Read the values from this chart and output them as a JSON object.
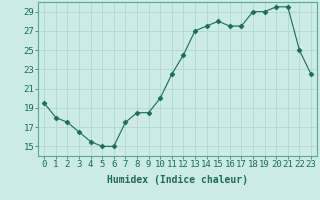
{
  "x": [
    0,
    1,
    2,
    3,
    4,
    5,
    6,
    7,
    8,
    9,
    10,
    11,
    12,
    13,
    14,
    15,
    16,
    17,
    18,
    19,
    20,
    21,
    22,
    23
  ],
  "y": [
    19.5,
    18.0,
    17.5,
    16.5,
    15.5,
    15.0,
    15.0,
    17.5,
    18.5,
    18.5,
    20.0,
    22.5,
    24.5,
    27.0,
    27.5,
    28.0,
    27.5,
    27.5,
    29.0,
    29.0,
    29.5,
    29.5,
    25.0,
    22.5
  ],
  "line_color": "#1a6b5a",
  "marker": "D",
  "marker_size": 2.5,
  "bg_color": "#cceae7",
  "grid_color": "#b0d8d5",
  "xlabel": "Humidex (Indice chaleur)",
  "xlim": [
    -0.5,
    23.5
  ],
  "ylim": [
    14,
    30
  ],
  "yticks": [
    15,
    17,
    19,
    21,
    23,
    25,
    27,
    29
  ],
  "xticks": [
    0,
    1,
    2,
    3,
    4,
    5,
    6,
    7,
    8,
    9,
    10,
    11,
    12,
    13,
    14,
    15,
    16,
    17,
    18,
    19,
    20,
    21,
    22,
    23
  ],
  "tick_color": "#1a6b5a",
  "label_fontsize": 7,
  "tick_fontsize": 6.5,
  "spine_color": "#5aa898"
}
